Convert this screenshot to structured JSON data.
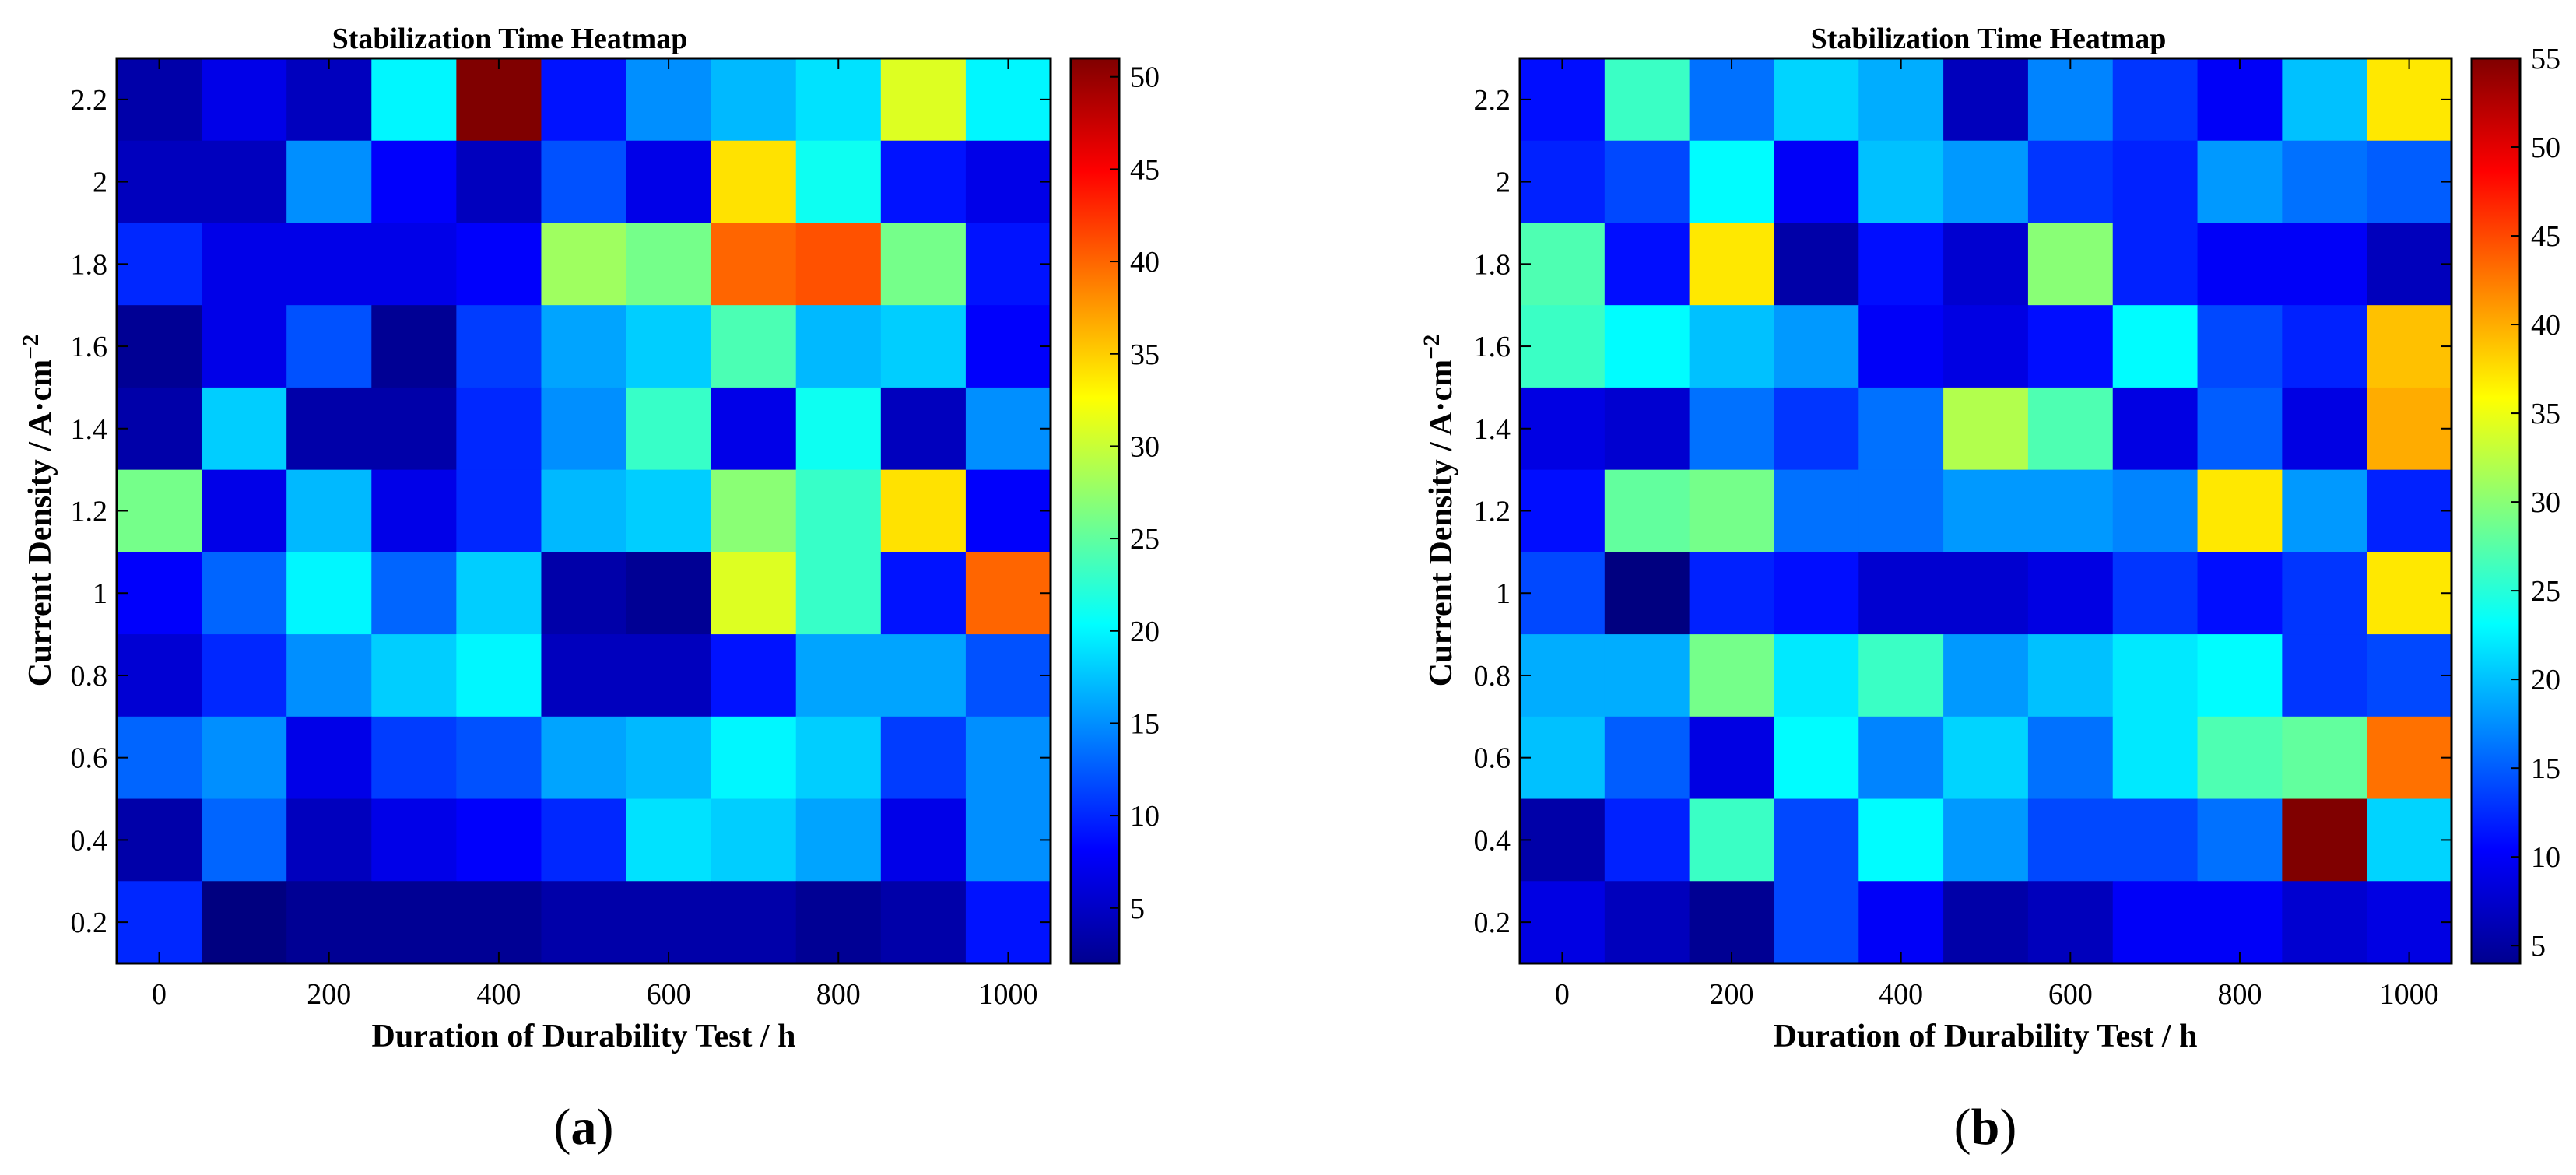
{
  "chart_data": [
    {
      "type": "heatmap",
      "panel_label": "a",
      "title": "Stabilization Time Heatmap",
      "xlabel": "Duration of Durability Test / h",
      "ylabel": "Current Density / A·cm",
      "ylabel_superscript": "−2",
      "x": [
        0,
        100,
        200,
        300,
        400,
        500,
        600,
        700,
        800,
        900,
        1000
      ],
      "y": [
        0.2,
        0.4,
        0.6,
        0.8,
        1.0,
        1.2,
        1.4,
        1.6,
        1.8,
        2.0,
        2.2
      ],
      "x_ticks": [
        0,
        200,
        400,
        600,
        800,
        1000
      ],
      "x_tick_labels": [
        "0",
        "200",
        "400",
        "600",
        "800",
        "1000"
      ],
      "y_ticks": [
        0.2,
        0.4,
        0.6,
        0.8,
        1.0,
        1.2,
        1.4,
        1.6,
        1.8,
        2.0,
        2.2
      ],
      "y_tick_labels": [
        "0.2",
        "0.4",
        "0.6",
        "0.8",
        "1",
        "1.2",
        "1.4",
        "1.6",
        "1.8",
        "2",
        "2.2"
      ],
      "z_rows_top_to_bottom": [
        [
          4,
          7,
          5,
          20,
          51,
          9,
          15,
          17,
          19,
          31,
          20
        ],
        [
          5,
          5,
          15,
          8,
          5,
          12,
          7,
          34,
          21,
          9,
          7
        ],
        [
          10,
          7,
          7,
          7,
          8,
          28,
          26,
          40,
          41,
          26,
          9
        ],
        [
          3,
          7,
          12,
          3,
          11,
          16,
          18,
          24,
          17,
          18,
          8
        ],
        [
          4,
          18,
          4,
          4,
          10,
          15,
          23,
          7,
          21,
          5,
          15
        ],
        [
          26,
          7,
          17,
          7,
          10,
          17,
          18,
          27,
          23,
          34,
          8
        ],
        [
          8,
          13,
          20,
          13,
          18,
          4,
          3,
          31,
          23,
          9,
          40
        ],
        [
          6,
          10,
          15,
          18,
          20,
          5,
          5,
          9,
          16,
          16,
          12
        ],
        [
          13,
          15,
          7,
          11,
          12,
          16,
          17,
          20,
          18,
          11,
          15
        ],
        [
          4,
          13,
          5,
          7,
          8,
          10,
          19,
          18,
          16,
          7,
          15
        ],
        [
          10,
          2,
          3,
          3,
          3,
          4,
          4,
          4,
          3,
          4,
          9
        ]
      ],
      "colorbar": {
        "min": 2,
        "max": 51,
        "ticks": [
          5,
          10,
          15,
          20,
          25,
          30,
          35,
          40,
          45,
          50
        ]
      }
    },
    {
      "type": "heatmap",
      "panel_label": "b",
      "title": "Stabilization Time Heatmap",
      "xlabel": "Duration of Durability Test / h",
      "ylabel": "Current Density / A·cm",
      "ylabel_superscript": "−2",
      "x": [
        0,
        100,
        200,
        300,
        400,
        500,
        600,
        700,
        800,
        900,
        1000
      ],
      "y": [
        0.2,
        0.4,
        0.6,
        0.8,
        1.0,
        1.2,
        1.4,
        1.6,
        1.8,
        2.0,
        2.2
      ],
      "x_ticks": [
        0,
        200,
        400,
        600,
        800,
        1000
      ],
      "x_tick_labels": [
        "0",
        "200",
        "400",
        "600",
        "800",
        "1000"
      ],
      "y_ticks": [
        0.2,
        0.4,
        0.6,
        0.8,
        1.0,
        1.2,
        1.4,
        1.6,
        1.8,
        2.0,
        2.2
      ],
      "y_tick_labels": [
        "0.2",
        "0.4",
        "0.6",
        "0.8",
        "1",
        "1.2",
        "1.4",
        "1.6",
        "1.8",
        "2",
        "2.2"
      ],
      "z_rows_top_to_bottom": [
        [
          11,
          26,
          16,
          21,
          19,
          7,
          17,
          13,
          10,
          20,
          37
        ],
        [
          12,
          14,
          23,
          10,
          20,
          18,
          13,
          12,
          18,
          16,
          15
        ],
        [
          27,
          11,
          37,
          6,
          11,
          8,
          30,
          12,
          10,
          10,
          7
        ],
        [
          26,
          23,
          20,
          18,
          10,
          9,
          11,
          23,
          14,
          12,
          39
        ],
        [
          9,
          8,
          16,
          13,
          16,
          32,
          27,
          9,
          15,
          9,
          40
        ],
        [
          11,
          28,
          29,
          16,
          16,
          18,
          18,
          17,
          37,
          18,
          12
        ],
        [
          14,
          4,
          12,
          11,
          8,
          8,
          9,
          13,
          11,
          13,
          37
        ],
        [
          19,
          19,
          29,
          22,
          26,
          18,
          20,
          22,
          23,
          13,
          14
        ],
        [
          20,
          15,
          9,
          23,
          17,
          21,
          16,
          22,
          27,
          28,
          43
        ],
        [
          6,
          12,
          26,
          14,
          23,
          18,
          14,
          14,
          16,
          55,
          21
        ],
        [
          9,
          7,
          5,
          14,
          10,
          6,
          7,
          10,
          10,
          8,
          9
        ]
      ],
      "colorbar": {
        "min": 4,
        "max": 55,
        "ticks": [
          5,
          10,
          15,
          20,
          25,
          30,
          35,
          40,
          45,
          50,
          55
        ]
      }
    }
  ]
}
